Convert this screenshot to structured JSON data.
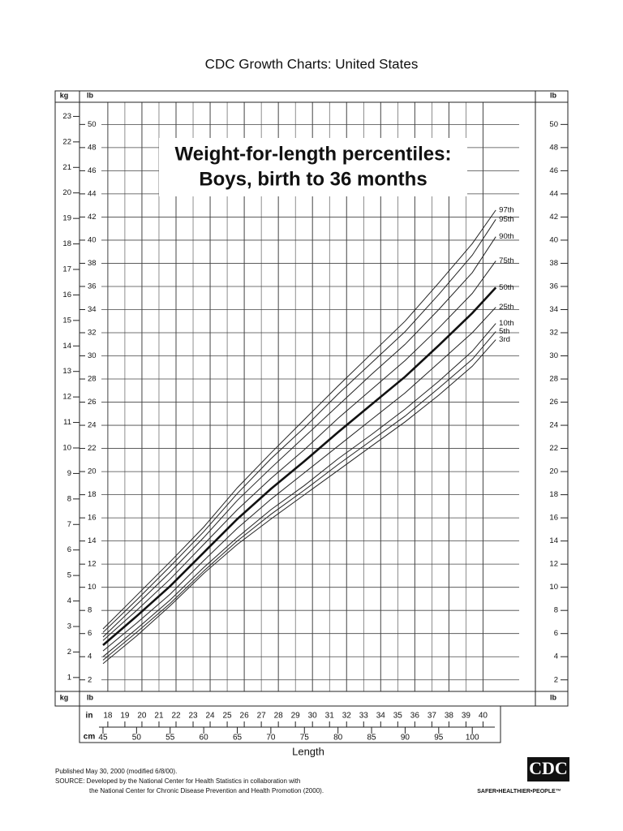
{
  "chart_data": {
    "type": "line",
    "title": "CDC Growth Charts: United States",
    "subtitle": [
      "Weight-for-length percentiles:",
      "Boys, birth to 36 months"
    ],
    "x_label": "Length",
    "x_unit": "cm",
    "x2_unit": "in",
    "y_unit": "lb",
    "y2_unit": "kg",
    "x": [
      45,
      50,
      55,
      60,
      65,
      70,
      75,
      80,
      85,
      90,
      95,
      100,
      103.5
    ],
    "xlim": [
      41.5,
      109.4
    ],
    "xticks": [
      45,
      50,
      55,
      60,
      65,
      70,
      75,
      80,
      85,
      90,
      95,
      100
    ],
    "x2lim": [
      16.34,
      43.07
    ],
    "x2ticks": [
      18,
      19,
      20,
      21,
      22,
      23,
      24,
      25,
      26,
      27,
      28,
      29,
      30,
      31,
      32,
      33,
      34,
      35,
      36,
      37,
      38,
      39,
      40
    ],
    "ylim": [
      1.0,
      52.9
    ],
    "yticks": [
      2,
      4,
      6,
      8,
      10,
      12,
      14,
      16,
      18,
      20,
      22,
      24,
      26,
      28,
      30,
      32,
      34,
      36,
      38,
      40,
      42,
      44,
      46,
      48,
      50
    ],
    "y2lim": [
      0.454,
      24.0
    ],
    "y2ticks": [
      1,
      2,
      3,
      4,
      5,
      6,
      7,
      8,
      9,
      10,
      11,
      12,
      13,
      14,
      15,
      16,
      17,
      18,
      19,
      20,
      21,
      22,
      23
    ],
    "grid": true,
    "series": [
      {
        "name": "97th",
        "color": "#222222",
        "width": 1,
        "values": [
          6.4,
          9.3,
          12.2,
          15.2,
          18.6,
          21.6,
          24.5,
          27.4,
          30.2,
          33.0,
          36.3,
          39.7,
          42.6
        ]
      },
      {
        "name": "95th",
        "color": "#222222",
        "width": 1,
        "values": [
          6.1,
          8.9,
          11.8,
          14.8,
          18.1,
          21.1,
          23.8,
          26.7,
          29.4,
          32.1,
          35.3,
          38.7,
          41.8
        ]
      },
      {
        "name": "90th",
        "color": "#222222",
        "width": 1,
        "values": [
          5.7,
          8.5,
          11.3,
          14.3,
          17.5,
          20.3,
          23.0,
          25.7,
          28.4,
          31.0,
          34.0,
          37.2,
          40.3
        ]
      },
      {
        "name": "75th",
        "color": "#222222",
        "width": 1,
        "values": [
          5.4,
          8.0,
          10.7,
          13.7,
          16.7,
          19.4,
          21.9,
          24.6,
          27.1,
          29.6,
          32.4,
          35.4,
          38.2
        ]
      },
      {
        "name": "50th",
        "color": "#111111",
        "width": 2.6,
        "values": [
          5.0,
          7.5,
          10.1,
          13.0,
          15.9,
          18.5,
          20.9,
          23.4,
          25.8,
          28.2,
          30.9,
          33.7,
          35.9
        ]
      },
      {
        "name": "25th",
        "color": "#222222",
        "width": 1,
        "values": [
          4.5,
          6.9,
          9.4,
          12.3,
          15.1,
          17.6,
          19.9,
          22.2,
          24.5,
          26.8,
          29.4,
          32.0,
          34.2
        ]
      },
      {
        "name": "10th",
        "color": "#222222",
        "width": 1,
        "values": [
          4.0,
          6.4,
          8.9,
          11.7,
          14.3,
          16.7,
          18.8,
          21.1,
          23.2,
          25.4,
          27.8,
          30.4,
          32.8
        ]
      },
      {
        "name": "5th",
        "color": "#222222",
        "width": 1,
        "values": [
          3.7,
          6.1,
          8.6,
          11.4,
          14.0,
          16.3,
          18.4,
          20.6,
          22.7,
          24.8,
          27.2,
          29.7,
          32.1
        ]
      },
      {
        "name": "3rd",
        "color": "#222222",
        "width": 1,
        "values": [
          3.4,
          5.8,
          8.4,
          11.2,
          13.7,
          15.9,
          18.0,
          20.1,
          22.2,
          24.3,
          26.6,
          29.1,
          31.4
        ]
      }
    ],
    "notes": [
      "Published May 30, 2000 (modified 6/8/00).",
      "SOURCE: Developed by the National Center for Health Statistics in collaboration with",
      "the National Center for Chronic Disease Prevention and Health Promotion (2000)."
    ],
    "logo": {
      "text": "CDC",
      "tagline": "SAFER•HEALTHIER•PEOPLE™"
    }
  }
}
